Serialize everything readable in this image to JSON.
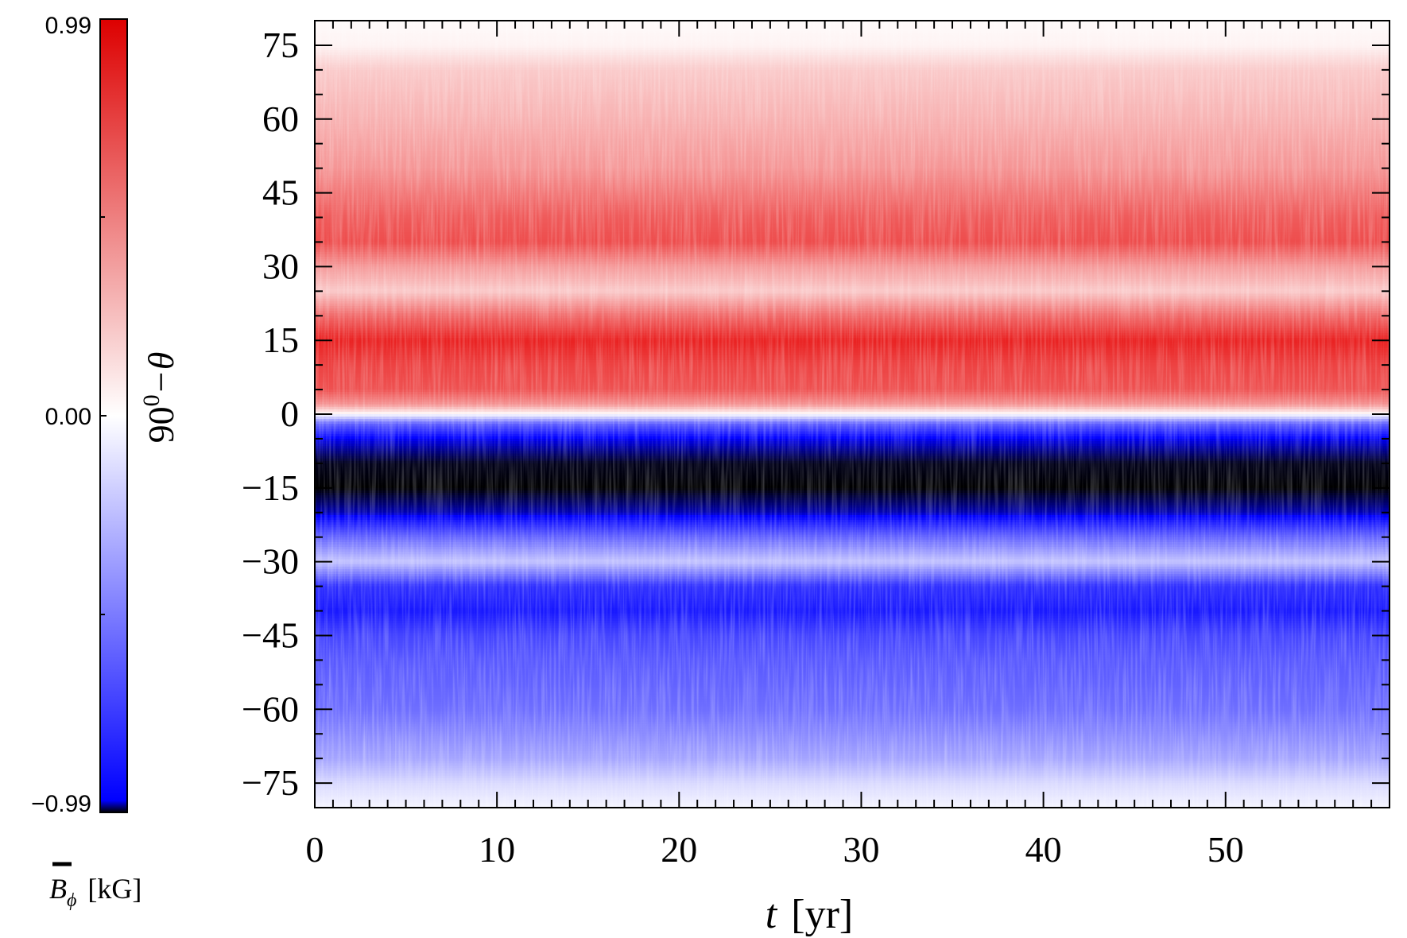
{
  "chart_data": {
    "type": "heatmap",
    "title": "",
    "xlabel": "t [yr]",
    "xlabel_parts": {
      "var": "t",
      "unit": "[yr]"
    },
    "ylabel": "90⁰−θ",
    "ylabel_parts": {
      "base": "90",
      "sup": "0",
      "rest": "−θ"
    },
    "x_range": [
      0,
      59
    ],
    "y_range": [
      -80,
      80
    ],
    "x_ticks": [
      0,
      10,
      20,
      30,
      40,
      50
    ],
    "x_tick_labels": [
      "0",
      "10",
      "20",
      "30",
      "40",
      "50"
    ],
    "y_ticks": [
      75,
      60,
      45,
      30,
      15,
      0,
      -15,
      -30,
      -45,
      -60,
      -75
    ],
    "y_tick_labels": [
      "75",
      "60",
      "45",
      "30",
      "15",
      "0",
      "−15",
      "−30",
      "−45",
      "−60",
      "−75"
    ],
    "latitude_profile": {
      "latitudes": [
        80,
        75,
        70,
        60,
        50,
        40,
        35,
        30,
        25,
        20,
        15,
        10,
        5,
        2,
        0,
        -2,
        -5,
        -10,
        -15,
        -20,
        -25,
        -30,
        -35,
        -40,
        -45,
        -50,
        -60,
        -70,
        -75,
        -80
      ],
      "mean_bphi_kG": [
        0.02,
        0.05,
        0.22,
        0.32,
        0.44,
        0.68,
        0.74,
        0.42,
        0.22,
        0.62,
        0.92,
        0.78,
        0.72,
        0.45,
        0.0,
        -0.5,
        -0.8,
        -0.97,
        -0.99,
        -0.85,
        -0.48,
        -0.18,
        -0.65,
        -0.72,
        -0.58,
        -0.52,
        -0.45,
        -0.28,
        -0.12,
        -0.03
      ]
    },
    "colorbar": {
      "label": "B̄_φ [kG]",
      "label_parts": {
        "symbol": "B",
        "sub": "ϕ",
        "unit": "[kG]"
      },
      "min": -0.99,
      "max": 0.99,
      "tick_labels": [
        "0.99",
        "0.00",
        "−0.99"
      ],
      "colors": {
        "negative_extreme": "#000000",
        "negative": "#0000ff",
        "zero": "#ffffff",
        "positive": "#e81010"
      }
    },
    "grid": false,
    "legend": "none"
  }
}
